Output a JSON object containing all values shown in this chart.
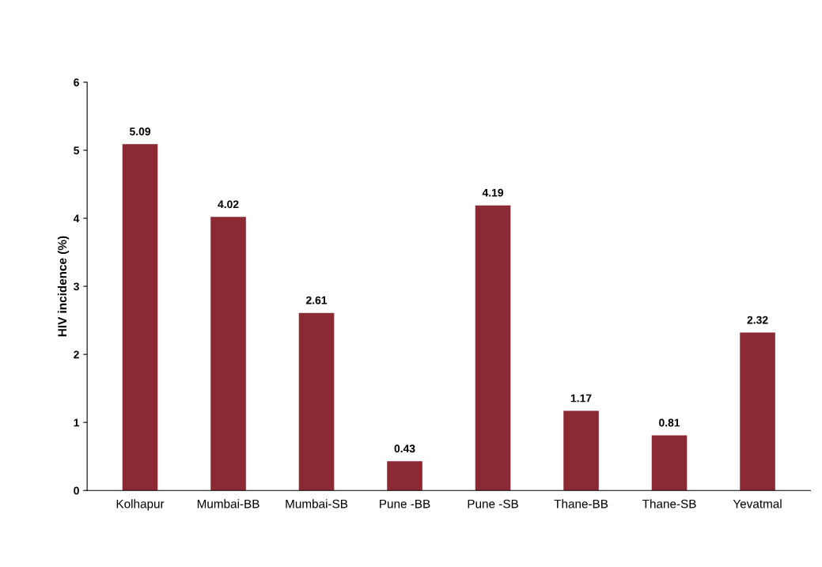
{
  "chart_data": {
    "type": "bar",
    "ylabel": "HIV incidence (%)",
    "categories": [
      "Kolhapur",
      "Mumbai-BB",
      "Mumbai-SB",
      "Pune -BB",
      "Pune -SB",
      "Thane-BB",
      "Thane-SB",
      "Yevatmal"
    ],
    "values": [
      5.09,
      4.02,
      2.61,
      0.43,
      4.19,
      1.17,
      0.81,
      2.32
    ],
    "color": "#8b2a35",
    "ylim": [
      0,
      6
    ],
    "yticks": [
      0,
      1,
      2,
      3,
      4,
      5,
      6
    ],
    "data_labels": true,
    "grid": false,
    "legend": false
  }
}
